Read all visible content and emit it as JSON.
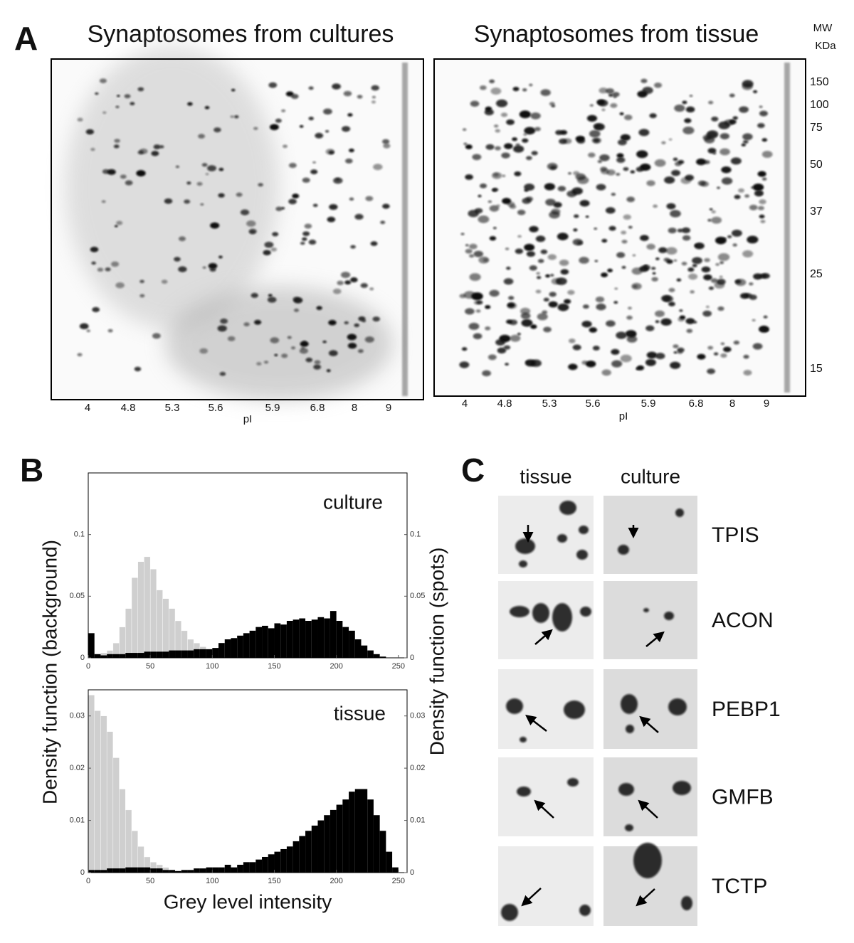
{
  "panel_a": {
    "label": "A",
    "gels": [
      {
        "title": "Synaptosomes from cultures",
        "pi_labels": [
          "4",
          "4.8",
          "5.3",
          "5.6",
          "5.9",
          "6.8",
          "8",
          "9"
        ],
        "pi_axis_label": "pI"
      },
      {
        "title": "Synaptosomes from tissue",
        "pi_labels": [
          "4",
          "4.8",
          "5.3",
          "5.6",
          "5.9",
          "6.8",
          "8",
          "9"
        ],
        "pi_axis_label": "pI"
      }
    ],
    "mw_header": [
      "MW",
      "KDa"
    ],
    "mw_labels": [
      "150",
      "100",
      "75",
      "50",
      "37",
      "25",
      "15"
    ]
  },
  "panel_b": {
    "label": "B",
    "ylabel_left": "Density function (background)",
    "ylabel_right": "Density function (spots)",
    "xlabel": "Grey level intensity"
  },
  "chart_data": [
    {
      "type": "histogram",
      "title": "culture",
      "bins": [
        0,
        5,
        10,
        15,
        20,
        25,
        30,
        35,
        40,
        45,
        50,
        55,
        60,
        65,
        70,
        75,
        80,
        85,
        90,
        95,
        100,
        105,
        110,
        115,
        120,
        125,
        130,
        135,
        140,
        145,
        150,
        155,
        160,
        165,
        170,
        175,
        180,
        185,
        190,
        195,
        200,
        205,
        210,
        215,
        220,
        225,
        230,
        235,
        240,
        245,
        250,
        255
      ],
      "series": [
        {
          "color": "#cfcfcf",
          "values": [
            0.003,
            0.002,
            0.004,
            0.006,
            0.012,
            0.025,
            0.04,
            0.065,
            0.078,
            0.082,
            0.072,
            0.055,
            0.048,
            0.04,
            0.03,
            0.022,
            0.015,
            0.012,
            0.009,
            0.006,
            0.004,
            0.002,
            0,
            0,
            0,
            0,
            0,
            0,
            0,
            0,
            0,
            0,
            0,
            0,
            0,
            0,
            0,
            0,
            0,
            0,
            0,
            0,
            0,
            0,
            0,
            0,
            0,
            0,
            0,
            0,
            0
          ]
        },
        {
          "color": "#000000",
          "values": [
            0.02,
            0.003,
            0.002,
            0.003,
            0.003,
            0.003,
            0.004,
            0.004,
            0.004,
            0.005,
            0.005,
            0.005,
            0.005,
            0.006,
            0.006,
            0.006,
            0.006,
            0.007,
            0.007,
            0.007,
            0.008,
            0.012,
            0.015,
            0.016,
            0.018,
            0.02,
            0.022,
            0.025,
            0.026,
            0.024,
            0.028,
            0.027,
            0.03,
            0.031,
            0.032,
            0.03,
            0.031,
            0.033,
            0.032,
            0.038,
            0.03,
            0.025,
            0.022,
            0.015,
            0.01,
            0.006,
            0.003,
            0.001,
            0,
            0,
            0
          ]
        }
      ],
      "xlim": [
        0,
        257
      ],
      "xticks": [
        0,
        50,
        100,
        150,
        200,
        250
      ],
      "ylim": [
        0,
        0.15
      ],
      "yticks": [
        0,
        0.05,
        0.1
      ],
      "y2ticks": [
        0,
        0.05,
        0.1
      ]
    },
    {
      "type": "histogram",
      "title": "tissue",
      "bins": [
        0,
        5,
        10,
        15,
        20,
        25,
        30,
        35,
        40,
        45,
        50,
        55,
        60,
        65,
        70,
        75,
        80,
        85,
        90,
        95,
        100,
        105,
        110,
        115,
        120,
        125,
        130,
        135,
        140,
        145,
        150,
        155,
        160,
        165,
        170,
        175,
        180,
        185,
        190,
        195,
        200,
        205,
        210,
        215,
        220,
        225,
        230,
        235,
        240,
        245,
        250,
        255
      ],
      "series": [
        {
          "color": "#cfcfcf",
          "values": [
            0.034,
            0.031,
            0.03,
            0.027,
            0.022,
            0.016,
            0.012,
            0.008,
            0.005,
            0.003,
            0.002,
            0.0015,
            0.001,
            0.0005,
            0,
            0,
            0,
            0,
            0,
            0,
            0,
            0,
            0,
            0,
            0,
            0,
            0,
            0,
            0,
            0,
            0,
            0,
            0,
            0,
            0,
            0,
            0,
            0,
            0,
            0,
            0,
            0,
            0,
            0,
            0,
            0,
            0,
            0,
            0,
            0,
            0
          ]
        },
        {
          "color": "#000000",
          "values": [
            0.0005,
            0.0005,
            0.0005,
            0.0008,
            0.0008,
            0.0008,
            0.001,
            0.001,
            0.001,
            0.001,
            0.0008,
            0.0008,
            0.0005,
            0.0005,
            0.0003,
            0.0005,
            0.0005,
            0.0008,
            0.0008,
            0.001,
            0.001,
            0.001,
            0.0015,
            0.001,
            0.0015,
            0.002,
            0.002,
            0.0025,
            0.003,
            0.0035,
            0.004,
            0.0045,
            0.005,
            0.006,
            0.007,
            0.008,
            0.009,
            0.01,
            0.011,
            0.012,
            0.013,
            0.014,
            0.0155,
            0.016,
            0.016,
            0.014,
            0.011,
            0.008,
            0.004,
            0.001,
            0
          ]
        }
      ],
      "xlim": [
        0,
        257
      ],
      "xticks": [
        0,
        50,
        100,
        150,
        200,
        250
      ],
      "ylim": [
        0,
        0.035
      ],
      "yticks": [
        0,
        0.01,
        0.02,
        0.03
      ],
      "y2ticks": [
        0,
        0.01,
        0.02,
        0.03
      ]
    }
  ],
  "panel_c": {
    "label": "C",
    "columns": [
      "tissue",
      "culture"
    ],
    "proteins": [
      "TPIS",
      "ACON",
      "PEBP1",
      "GMFB",
      "TCTP"
    ]
  }
}
